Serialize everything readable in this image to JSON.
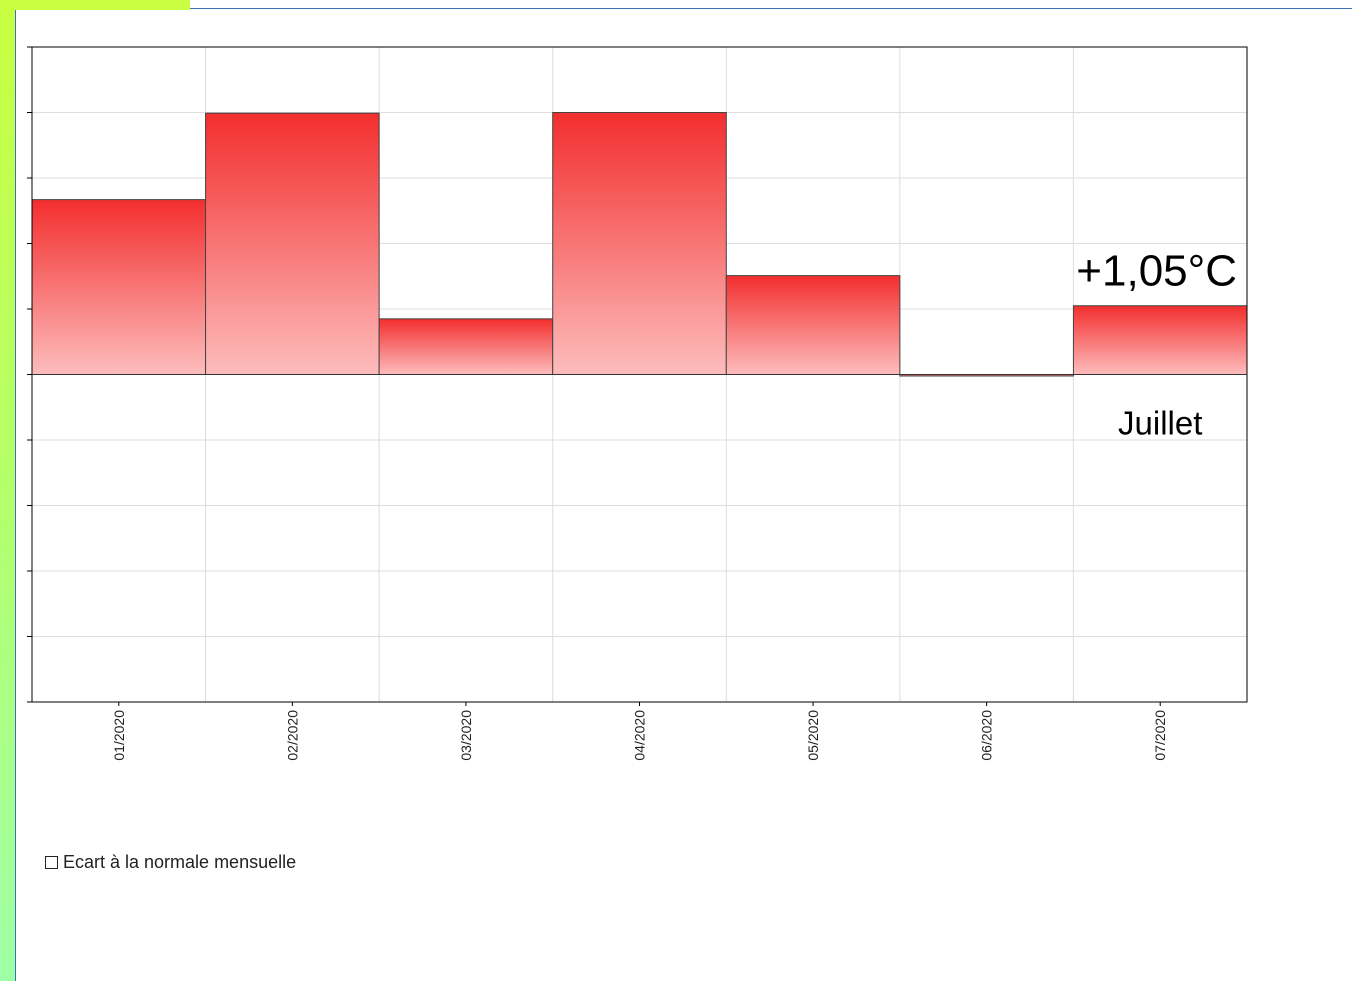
{
  "chart_data": {
    "type": "bar",
    "categories": [
      "01/2020",
      "02/2020",
      "03/2020",
      "04/2020",
      "05/2020",
      "06/2020",
      "07/2020"
    ],
    "series": [
      {
        "name": "Ecart à la normale mensuelle",
        "values": [
          2.67,
          3.99,
          0.85,
          4.0,
          1.51,
          -0.02,
          1.05
        ]
      }
    ],
    "ylim": [
      -5,
      5
    ],
    "grid": true,
    "legend_position": "bottom-left",
    "annotation_value": "+1,05°C",
    "annotation_month": "Juillet",
    "colors": {
      "bar_top": "#f32e2e",
      "bar_bottom": "#fdbcbc",
      "grid": "#dddddd",
      "axis": "#000000"
    }
  }
}
